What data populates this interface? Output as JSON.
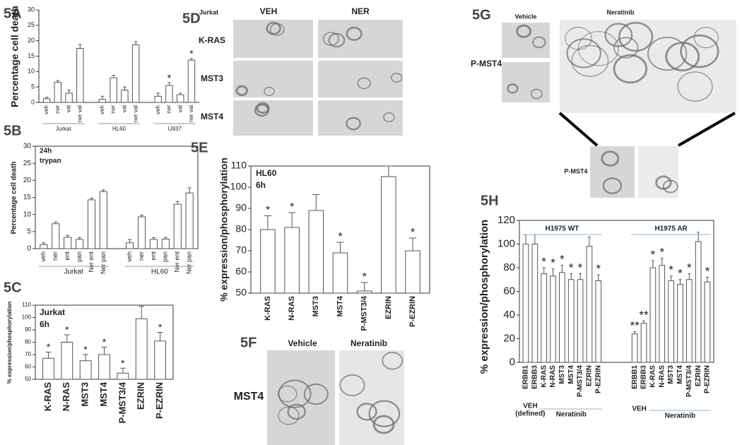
{
  "chart_data": [
    {
      "type": "bar",
      "label": "5A",
      "ylabel": "Percentage cell death",
      "ylim": [
        0,
        30
      ],
      "yticks": [
        0,
        5,
        10,
        15,
        20,
        25,
        30
      ],
      "color": "#ffffff",
      "categories": [
        "veh",
        "ner",
        "val",
        "ner val"
      ],
      "series": [
        {
          "name": "Jurkat",
          "values": [
            1.2,
            6.5,
            3,
            17.5
          ],
          "errors": [
            0.5,
            0.6,
            1,
            1.3
          ],
          "significance": [
            null,
            null,
            null,
            null
          ]
        },
        {
          "name": "HL60",
          "values": [
            1,
            8,
            4,
            18.7
          ],
          "errors": [
            1,
            0.8,
            1,
            1
          ],
          "significance": [
            null,
            null,
            null,
            null
          ]
        },
        {
          "name": "U937",
          "values": [
            2,
            5.5,
            2.5,
            13.7
          ],
          "errors": [
            1,
            0.9,
            0.5,
            0.5
          ],
          "significance": [
            null,
            "*",
            null,
            "*"
          ]
        }
      ]
    },
    {
      "type": "bar",
      "label": "5B",
      "ylabel": "Percentage cell death",
      "notes": [
        "24h",
        "trypan"
      ],
      "ylim": [
        0,
        30
      ],
      "yticks": [
        0,
        5,
        10,
        15,
        20,
        25,
        30
      ],
      "color": "#ffffff",
      "categories": [
        "veh",
        "ner",
        "ent",
        "pan",
        "Ner ent",
        "Ner pan"
      ],
      "series": [
        {
          "name": "Jurkat",
          "values": [
            1.2,
            7.3,
            3.3,
            2.7,
            14.3,
            16.7
          ],
          "errors": [
            0.5,
            0.5,
            0.6,
            0.5,
            0.5,
            0.5
          ],
          "significance": [
            null,
            null,
            null,
            null,
            null,
            null
          ]
        },
        {
          "name": "HL60",
          "values": [
            1.7,
            9.3,
            2.7,
            2.8,
            13,
            16.3
          ],
          "errors": [
            1,
            0.5,
            0.5,
            0.5,
            0.8,
            1.5
          ],
          "significance": [
            null,
            null,
            null,
            null,
            null,
            null
          ]
        }
      ]
    },
    {
      "type": "bar",
      "label": "5C",
      "ylabel": "% expression/phosphorylation",
      "notes": [
        "Jurkat",
        "6h"
      ],
      "ylim": [
        50,
        110
      ],
      "yticks": [
        50,
        60,
        70,
        80,
        90,
        100,
        110
      ],
      "color": "#ffffff",
      "categories": [
        "K-RAS",
        "N-RAS",
        "MST3",
        "MST4",
        "P-MST3/4",
        "EZRIN",
        "P-EZRIN"
      ],
      "series": [
        {
          "values": [
            67,
            80,
            65,
            70,
            55,
            99,
            81
          ],
          "errors": [
            5,
            6,
            5,
            6,
            4,
            10,
            7
          ],
          "significance": [
            "*",
            "*",
            "*",
            "*",
            "*",
            null,
            "*"
          ]
        }
      ]
    },
    {
      "type": "bar",
      "label": "5E",
      "ylabel": "% expression/phosphorylation",
      "notes": [
        "HL60",
        "6h"
      ],
      "ylim": [
        50,
        110
      ],
      "yticks": [
        50,
        60,
        70,
        80,
        90,
        100,
        110
      ],
      "color": "#ffffff",
      "categories": [
        "K-RAS",
        "N-RAS",
        "MST3",
        "MST4",
        "P-MST3/4",
        "EZRIN",
        "P-EZRIN"
      ],
      "series": [
        {
          "values": [
            80,
            81,
            89,
            69,
            51,
            105,
            70
          ],
          "errors": [
            6.5,
            7,
            7.5,
            5,
            4,
            5,
            6
          ],
          "significance": [
            "*",
            "*",
            null,
            "*",
            "*",
            null,
            "*"
          ]
        }
      ]
    },
    {
      "type": "bar",
      "label": "5H",
      "ylabel": "% expression/phosphorylation",
      "ylim": [
        0,
        120
      ],
      "yticks": [
        0,
        20,
        40,
        60,
        80,
        100,
        120
      ],
      "color": "#ffffff",
      "categories": [
        "ERBB1",
        "ERBB3",
        "K-RAS",
        "N-RAS",
        "MST3",
        "MST4",
        "P-MST3/4",
        "EZRIN",
        "P-EZRIN"
      ],
      "series": [
        {
          "name": "H1975 WT",
          "sublabels": [
            [
              "VEH",
              "(defined)"
            ],
            [
              "Neratinib"
            ]
          ],
          "values": [
            100,
            100,
            75,
            73,
            76,
            70,
            70,
            98,
            69
          ],
          "errors": [
            8,
            8,
            5,
            6,
            6,
            5,
            5,
            8,
            5
          ],
          "significance": [
            null,
            null,
            "*",
            "*",
            "*",
            "*",
            "*",
            null,
            "*"
          ]
        },
        {
          "name": "H1975 AR",
          "sublabels": [
            [
              "VEH"
            ],
            [
              "Neratinib"
            ]
          ],
          "values": [
            24,
            33,
            80,
            82,
            69,
            66,
            70,
            102,
            68
          ],
          "errors": [
            2,
            2,
            6,
            6,
            4,
            4,
            5,
            8,
            4
          ],
          "significance": [
            "**",
            "**",
            "*",
            "*",
            "*",
            "*",
            "*",
            null,
            "*"
          ]
        }
      ]
    }
  ],
  "image_panels": [
    {
      "label": "5D",
      "cell_line": "Jurkat",
      "columns": [
        "VEH",
        "NER"
      ],
      "rows": [
        "K-RAS",
        "MST3",
        "MST4"
      ]
    },
    {
      "label": "5F",
      "columns": [
        "Vehicle",
        "Neratinib"
      ],
      "rows": [
        "MST4"
      ]
    },
    {
      "label": "5G",
      "columns": [
        "Vehicle",
        "Neratinib"
      ],
      "rows": [
        "P-MST4"
      ],
      "inset_label": "P-MST4"
    }
  ]
}
